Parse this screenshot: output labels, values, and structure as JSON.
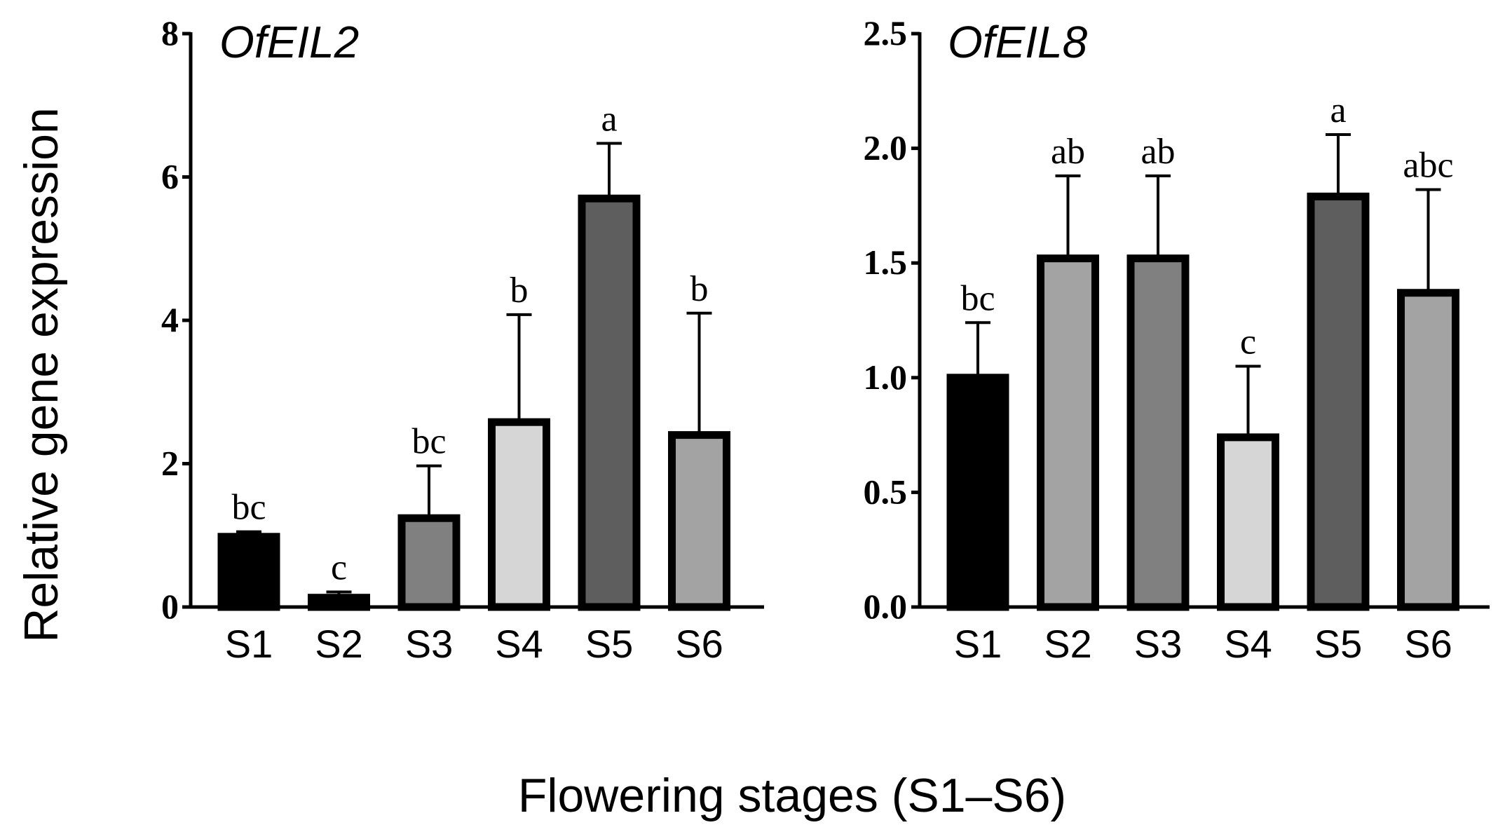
{
  "chart_data": [
    {
      "type": "bar",
      "title": "OfEIL2",
      "categories": [
        "S1",
        "S2",
        "S3",
        "S4",
        "S5",
        "S6"
      ],
      "values": [
        0.98,
        0.13,
        1.24,
        2.58,
        5.7,
        2.4
      ],
      "errors": [
        0.07,
        0.08,
        0.73,
        1.5,
        0.77,
        1.7
      ],
      "significance": [
        "bc",
        "c",
        "bc",
        "b",
        "a",
        "b"
      ],
      "colors": [
        "#000000",
        "#000000",
        "#808080",
        "#d6d6d6",
        "#5e5e5e",
        "#a3a3a3"
      ],
      "yticks": [
        "0",
        "2",
        "4",
        "6",
        "8"
      ],
      "ytick_values": [
        0,
        2,
        4,
        6,
        8
      ],
      "ylim": [
        0,
        8
      ]
    },
    {
      "type": "bar",
      "title": "OfEIL8",
      "categories": [
        "S1",
        "S2",
        "S3",
        "S4",
        "S5",
        "S6"
      ],
      "values": [
        1.0,
        1.52,
        1.52,
        0.74,
        1.79,
        1.37
      ],
      "errors": [
        0.24,
        0.36,
        0.36,
        0.31,
        0.27,
        0.45
      ],
      "significance": [
        "bc",
        "ab",
        "ab",
        "c",
        "a",
        "abc"
      ],
      "colors": [
        "#000000",
        "#a3a3a3",
        "#808080",
        "#d6d6d6",
        "#5e5e5e",
        "#a3a3a3"
      ],
      "yticks": [
        "0.0",
        "0.5",
        "1.0",
        "1.5",
        "2.0",
        "2.5"
      ],
      "ytick_values": [
        0,
        0.5,
        1.0,
        1.5,
        2.0,
        2.5
      ],
      "ylim": [
        0,
        2.5
      ]
    }
  ],
  "ylabel": "Relative gene expression",
  "xlabel": "Flowering stages (S1–S6)"
}
